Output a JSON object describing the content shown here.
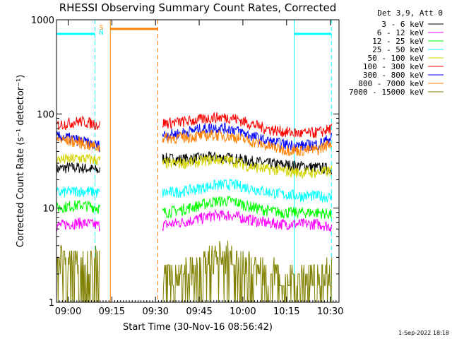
{
  "chart_data": {
    "type": "line",
    "title": "RHESSI Observing Summary Count Rates, Corrected",
    "xlabel": "Start Time (30-Nov-16 08:56:42)",
    "ylabel": "Corrected Count Rate (s⁻¹ detector⁻¹)",
    "yscale": "log",
    "ylim": [
      1,
      1000
    ],
    "xlim_minutes_after_0856": [
      0,
      97
    ],
    "y_ticks": [
      "1",
      "10",
      "100",
      "1000"
    ],
    "x_ticks": [
      {
        "label": "09:00",
        "minute": 4
      },
      {
        "label": "09:15",
        "minute": 19
      },
      {
        "label": "09:30",
        "minute": 34
      },
      {
        "label": "09:45",
        "minute": 49
      },
      {
        "label": "10:00",
        "minute": 64
      },
      {
        "label": "10:15",
        "minute": 79
      },
      {
        "label": "10:30",
        "minute": 94
      }
    ],
    "legend_header": "Det 3,9, Att 0",
    "legend_position": "right",
    "series": [
      {
        "name": "3 - 6 keV",
        "color": "#000000",
        "segments": [
          {
            "x": [
              0,
              4,
              8,
              12,
              14.9
            ],
            "y": [
              26,
              27,
              27,
              26,
              25
            ]
          },
          {
            "x": [
              36.4,
              42,
              48,
              54,
              60,
              66,
              72,
              78,
              84,
              90,
              94.5
            ],
            "y": [
              34,
              33,
              34,
              35,
              34,
              32,
              30,
              29,
              28,
              27,
              26
            ]
          }
        ]
      },
      {
        "name": "6 - 12 keV",
        "color": "#ff00ff",
        "segments": [
          {
            "x": [
              0,
              4,
              8,
              12,
              14.9
            ],
            "y": [
              6.5,
              6.8,
              7.0,
              6.8,
              6.5
            ]
          },
          {
            "x": [
              36.4,
              42,
              48,
              54,
              60,
              66,
              72,
              78,
              84,
              90,
              94.5
            ],
            "y": [
              6.6,
              7.0,
              7.6,
              8.4,
              8.4,
              7.6,
              7.0,
              6.8,
              6.8,
              6.8,
              6.4
            ]
          }
        ]
      },
      {
        "name": "12 - 25 keV",
        "color": "#00ff00",
        "segments": [
          {
            "x": [
              0,
              4,
              8,
              12,
              14.9
            ],
            "y": [
              10.0,
              10.5,
              10.8,
              10.5,
              10.0
            ]
          },
          {
            "x": [
              36.4,
              42,
              48,
              54,
              60,
              66,
              72,
              78,
              84,
              90,
              94.5
            ],
            "y": [
              9.0,
              9.5,
              10.5,
              11.8,
              12.0,
              10.5,
              9.5,
              9.0,
              9.0,
              9.0,
              8.6
            ]
          }
        ]
      },
      {
        "name": "25 - 50 keV",
        "color": "#00ffff",
        "segments": [
          {
            "x": [
              0,
              4,
              8,
              12,
              14.9
            ],
            "y": [
              14.5,
              15.0,
              15.2,
              15.0,
              14.5
            ]
          },
          {
            "x": [
              36.4,
              42,
              48,
              54,
              60,
              66,
              72,
              78,
              84,
              90,
              94.5
            ],
            "y": [
              14.5,
              15.0,
              16.0,
              17.5,
              18.0,
              16.5,
              15.0,
              14.0,
              13.5,
              13.5,
              13.0
            ]
          }
        ]
      },
      {
        "name": "50 - 100 keV",
        "color": "#d4d400",
        "segments": [
          {
            "x": [
              0,
              4,
              8,
              12,
              14.9
            ],
            "y": [
              33,
              33,
              34,
              33,
              32
            ]
          },
          {
            "x": [
              36.4,
              42,
              48,
              54,
              60,
              66,
              72,
              78,
              84,
              90,
              94.5
            ],
            "y": [
              30,
              30,
              31,
              33,
              32,
              28,
              26,
              25,
              24,
              24,
              25
            ]
          }
        ]
      },
      {
        "name": "100 - 300 keV",
        "color": "#ff0000",
        "segments": [
          {
            "x": [
              0,
              4,
              8,
              12,
              14.9
            ],
            "y": [
              76,
              80,
              84,
              80,
              76
            ]
          },
          {
            "x": [
              36.4,
              42,
              48,
              54,
              60,
              66,
              72,
              78,
              84,
              90,
              94.5
            ],
            "y": [
              80,
              82,
              86,
              92,
              92,
              80,
              70,
              65,
              62,
              64,
              70
            ]
          }
        ]
      },
      {
        "name": "300 - 800 keV",
        "color": "#0000ff",
        "segments": [
          {
            "x": [
              0,
              4,
              8,
              12,
              14.9
            ],
            "y": [
              58,
              56,
              52,
              48,
              46
            ]
          },
          {
            "x": [
              36.4,
              42,
              48,
              54,
              60,
              66,
              72,
              78,
              84,
              90,
              94.5
            ],
            "y": [
              60,
              62,
              68,
              72,
              70,
              60,
              52,
              48,
              46,
              48,
              56
            ]
          }
        ]
      },
      {
        "name": "800 - 7000 keV",
        "color": "#ff8000",
        "segments": [
          {
            "x": [
              0,
              4,
              8,
              12,
              14.9
            ],
            "y": [
              54,
              52,
              50,
              46,
              44
            ]
          },
          {
            "x": [
              36.4,
              42,
              48,
              54,
              60,
              66,
              72,
              78,
              84,
              90,
              94.5
            ],
            "y": [
              56,
              56,
              58,
              60,
              58,
              52,
              46,
              42,
              41,
              42,
              50
            ]
          }
        ]
      },
      {
        "name": "7000 - 15000 keV",
        "color": "#808000",
        "segments": [
          {
            "x": [
              0,
              4,
              8,
              12,
              14.9
            ],
            "y": [
              2.5,
              2.6,
              2.5,
              2.4,
              2.2
            ]
          },
          {
            "x": [
              36.4,
              42,
              48,
              54,
              60,
              66,
              72,
              78,
              84,
              90,
              94.5
            ],
            "y": [
              1.6,
              1.7,
              2.0,
              2.6,
              2.6,
              2.1,
              1.8,
              1.6,
              1.6,
              1.6,
              1.8
            ]
          }
        ]
      }
    ],
    "annotations": {
      "flags": [
        {
          "label": "S",
          "color": "#ff8000"
        },
        {
          "label": "N",
          "color": "#00ffff"
        }
      ],
      "saa_interval_minutes": [
        18.5,
        34.8
      ],
      "night_intervals_minutes": [
        [
          0,
          13.2
        ],
        [
          81.6,
          94.4
        ]
      ]
    }
  },
  "footer": {
    "timestamp": "1-Sep-2022 18:18"
  }
}
